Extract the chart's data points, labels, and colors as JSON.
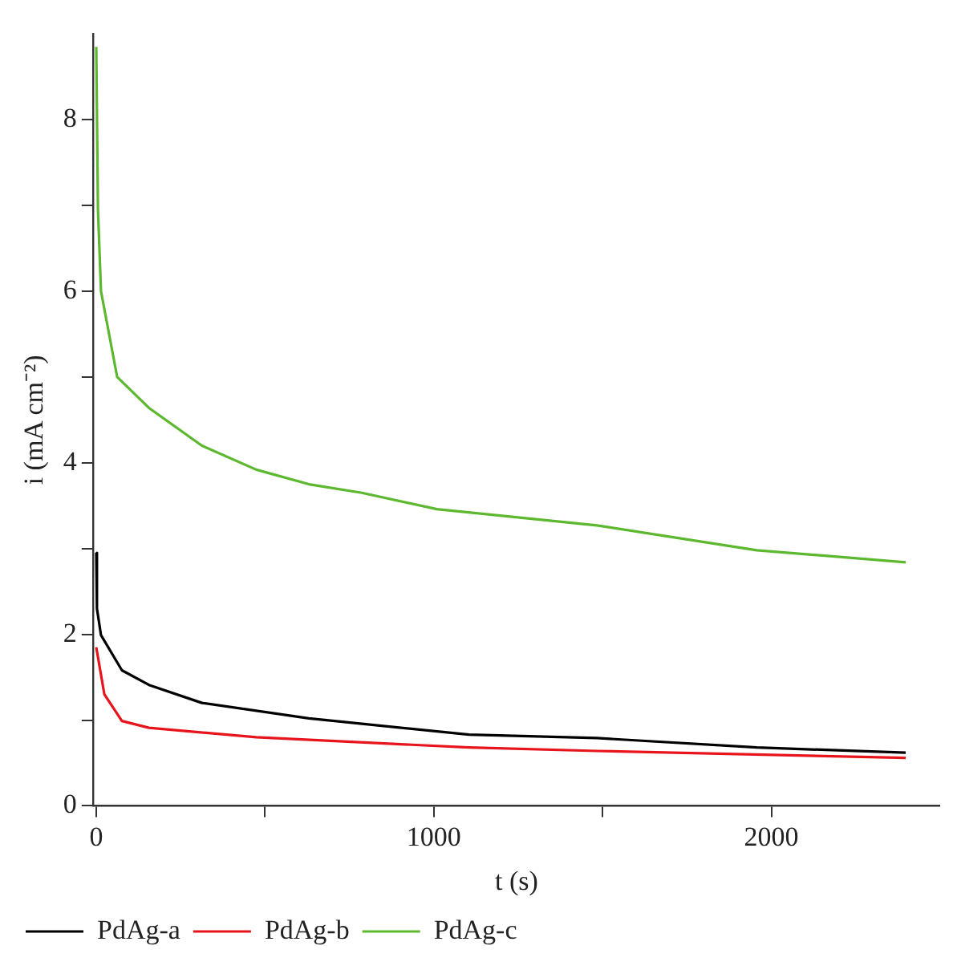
{
  "chart_data": {
    "type": "line",
    "xlabel": "t (s)",
    "ylabel": "i (mA cm⁻²)",
    "xlim": [
      -10,
      2500
    ],
    "ylim": [
      0,
      9
    ],
    "xticks": [
      0,
      {
        "value": 500,
        "label": null
      },
      1000,
      {
        "value": 1500,
        "label": null
      },
      2000
    ],
    "yticks": [
      0,
      {
        "value": 1,
        "label": null
      },
      2,
      {
        "value": 3,
        "label": null
      },
      4,
      {
        "value": 5,
        "label": null
      },
      6,
      {
        "value": 7,
        "label": null
      },
      8
    ],
    "grid": false,
    "legend": "bottom left",
    "marker": "none",
    "line_style": "solid",
    "series": [
      {
        "name": "PdAg-a",
        "color": "#000000",
        "x": [
          0,
          2,
          14,
          76,
          156,
          313,
          630,
          1104,
          1483,
          1957,
          2398
        ],
        "values": [
          2.95,
          2.3,
          1.99,
          1.58,
          1.41,
          1.2,
          1.02,
          0.83,
          0.79,
          0.68,
          0.62
        ]
      },
      {
        "name": "PdAg-b",
        "color": "#e8141b",
        "x": [
          0,
          24,
          76,
          156,
          474,
          1104,
          1483,
          2398
        ],
        "values": [
          1.85,
          1.3,
          0.99,
          0.91,
          0.8,
          0.68,
          0.64,
          0.56
        ]
      },
      {
        "name": "PdAg-c",
        "color": "#5cb82e",
        "x": [
          0,
          5,
          14,
          62,
          156,
          313,
          474,
          630,
          787,
          1009,
          1483,
          1957,
          2398
        ],
        "values": [
          8.85,
          6.96,
          6.0,
          5.0,
          4.64,
          4.2,
          3.92,
          3.75,
          3.65,
          3.46,
          3.27,
          2.98,
          2.84
        ]
      }
    ]
  }
}
